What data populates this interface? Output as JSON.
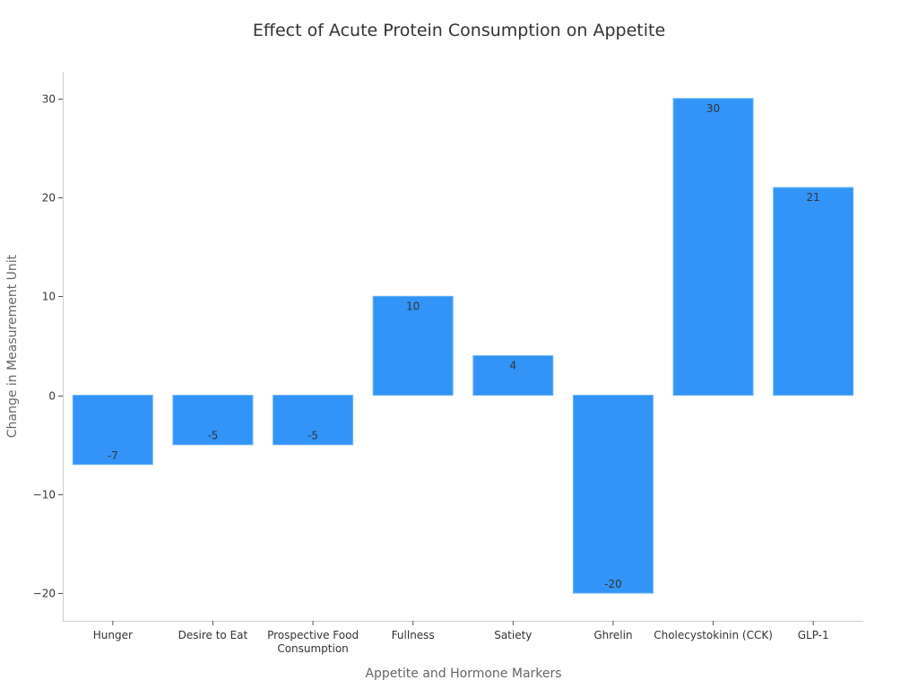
{
  "chart_data": {
    "type": "bar",
    "title": "Effect of Acute Protein Consumption on Appetite",
    "xlabel": "Appetite and Hormone Markers",
    "ylabel": "Change in Measurement Unit",
    "categories": [
      "Hunger",
      "Desire to Eat",
      "Prospective Food Consumption",
      "Fullness",
      "Satiety",
      "Ghrelin",
      "Cholecystokinin (CCK)",
      "GLP-1"
    ],
    "category_lines": [
      [
        "Hunger"
      ],
      [
        "Desire to Eat"
      ],
      [
        "Prospective Food",
        "Consumption"
      ],
      [
        "Fullness"
      ],
      [
        "Satiety"
      ],
      [
        "Ghrelin"
      ],
      [
        "Cholecystokinin (CCK)"
      ],
      [
        "GLP-1"
      ]
    ],
    "values": [
      -7,
      -5,
      -5,
      10,
      4,
      -20,
      30,
      21
    ],
    "data_labels": [
      "-7",
      "-5",
      "-5",
      "10",
      "4",
      "-20",
      "30",
      "21"
    ],
    "yticks": [
      -20,
      -10,
      0,
      10,
      20,
      30
    ],
    "ytick_labels": [
      "−20",
      "−10",
      "0",
      "10",
      "20",
      "30"
    ],
    "ylim": [
      -22.8,
      32.7
    ],
    "grid": false,
    "legend": "none",
    "bar_color": "#3194f6"
  }
}
